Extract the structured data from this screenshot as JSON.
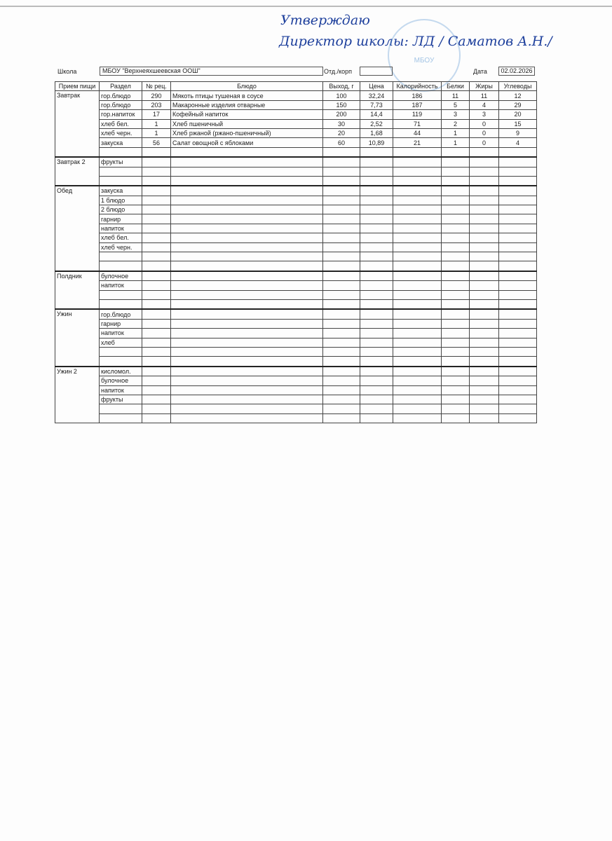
{
  "approval": {
    "line1": "Утверждаю",
    "line2": "Директор школы:",
    "signature": "ЛД",
    "name": "/ Саматов А.Н./"
  },
  "stamp": {
    "text": "МБОУ"
  },
  "header": {
    "school_label": "Школа",
    "school": "МБОУ \"Верхнеяхшеевская ООШ\"",
    "dept_label": "Отд./корп",
    "dept": "",
    "date_label": "Дата",
    "date": "02.02.2026"
  },
  "columns": [
    "Прием пищи",
    "Раздел",
    "№ рец.",
    "Блюдо",
    "Выход, г",
    "Цена",
    "Калорийность",
    "Белки",
    "Жиры",
    "Углеводы"
  ],
  "meals": [
    {
      "name": "Завтрак",
      "rows": [
        [
          "гор.блюдо",
          "290",
          "Мякоть птицы тушеная в соусе",
          "100",
          "32,24",
          "186",
          "11",
          "11",
          "12"
        ],
        [
          "гор.блюдо",
          "203",
          "Макаронные изделия отварные",
          "150",
          "7,73",
          "187",
          "5",
          "4",
          "29"
        ],
        [
          "гор.напиток",
          "17",
          "Кофейный напиток",
          "200",
          "14,4",
          "119",
          "3",
          "3",
          "20"
        ],
        [
          "хлеб бел.",
          "1",
          "Хлеб пшеничный",
          "30",
          "2,52",
          "71",
          "2",
          "0",
          "15"
        ],
        [
          "хлеб черн.",
          "1",
          "Хлеб ржаной (ржано-пшеничный)",
          "20",
          "1,68",
          "44",
          "1",
          "0",
          "9"
        ],
        [
          "закуска",
          "56",
          "Салат овощной с яблоками",
          "60",
          "10,89",
          "21",
          "1",
          "0",
          "4"
        ],
        [
          "",
          "",
          "",
          "",
          "",
          "",
          "",
          "",
          ""
        ]
      ]
    },
    {
      "name": "Завтрак 2",
      "rows": [
        [
          "фрукты"
        ],
        [
          ""
        ],
        [
          ""
        ]
      ]
    },
    {
      "name": "Обед",
      "rows": [
        [
          "закуска"
        ],
        [
          "1 блюдо"
        ],
        [
          "2 блюдо"
        ],
        [
          "гарнир"
        ],
        [
          "напиток"
        ],
        [
          "хлеб бел."
        ],
        [
          "хлеб черн."
        ],
        [
          ""
        ],
        [
          ""
        ]
      ]
    },
    {
      "name": "Полдник",
      "rows": [
        [
          "булочное"
        ],
        [
          "напиток"
        ],
        [
          ""
        ],
        [
          ""
        ]
      ]
    },
    {
      "name": "Ужин",
      "rows": [
        [
          "гор.блюдо"
        ],
        [
          "гарнир"
        ],
        [
          "напиток"
        ],
        [
          "хлеб"
        ],
        [
          ""
        ],
        [
          ""
        ]
      ]
    },
    {
      "name": "Ужин 2",
      "rows": [
        [
          "кисломол."
        ],
        [
          "булочное"
        ],
        [
          "напиток"
        ],
        [
          "фрукты"
        ],
        [
          ""
        ],
        [
          ""
        ]
      ]
    }
  ]
}
